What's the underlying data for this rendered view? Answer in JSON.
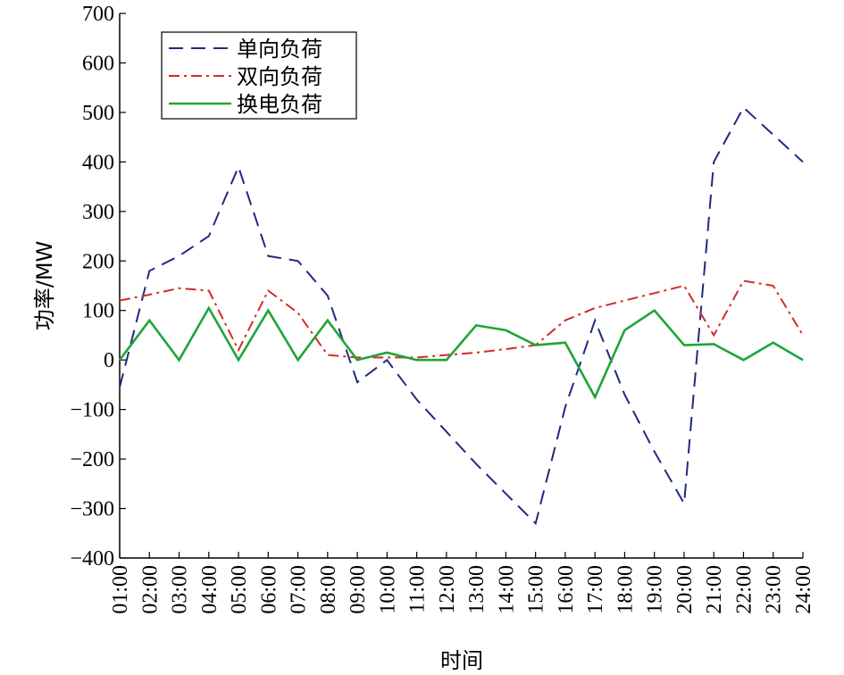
{
  "chart_data": {
    "type": "line",
    "xlabel": "时间",
    "ylabel": "功率/MW",
    "ylim": [
      -400,
      700
    ],
    "yticks": [
      -400,
      -300,
      -200,
      -100,
      0,
      100,
      200,
      300,
      400,
      500,
      600,
      700
    ],
    "ytick_labels": [
      "−400",
      "−300",
      "−200",
      "−100",
      "0",
      "100",
      "200",
      "300",
      "400",
      "500",
      "600",
      "700"
    ],
    "categories": [
      "01:00",
      "02:00",
      "03:00",
      "04:00",
      "05:00",
      "06:00",
      "07:00",
      "08:00",
      "09:00",
      "10:00",
      "11:00",
      "12:00",
      "13:00",
      "14:00",
      "15:00",
      "16:00",
      "17:00",
      "18:00",
      "19:00",
      "20:00",
      "21:00",
      "22:00",
      "23:00",
      "24:00"
    ],
    "grid": false,
    "legend_position": "top-left",
    "series": [
      {
        "name": "单向负荷",
        "color": "#1f2a80",
        "style": "dashed",
        "values": [
          -55,
          180,
          210,
          250,
          390,
          210,
          200,
          130,
          -45,
          0,
          -80,
          -145,
          -210,
          -270,
          -330,
          -95,
          80,
          -70,
          -185,
          -290,
          400,
          510,
          455,
          400
        ]
      },
      {
        "name": "双向负荷",
        "color": "#d42a2a",
        "style": "dashdot",
        "values": [
          120,
          132,
          145,
          140,
          20,
          140,
          95,
          10,
          5,
          5,
          5,
          10,
          15,
          22,
          30,
          80,
          105,
          120,
          135,
          150,
          50,
          160,
          150,
          50
        ]
      },
      {
        "name": "换电负荷",
        "color": "#1ea53a",
        "style": "solid",
        "values": [
          0,
          80,
          0,
          105,
          0,
          100,
          0,
          80,
          0,
          15,
          0,
          0,
          70,
          60,
          30,
          35,
          -75,
          60,
          100,
          30,
          32,
          0,
          35,
          0
        ]
      }
    ]
  }
}
